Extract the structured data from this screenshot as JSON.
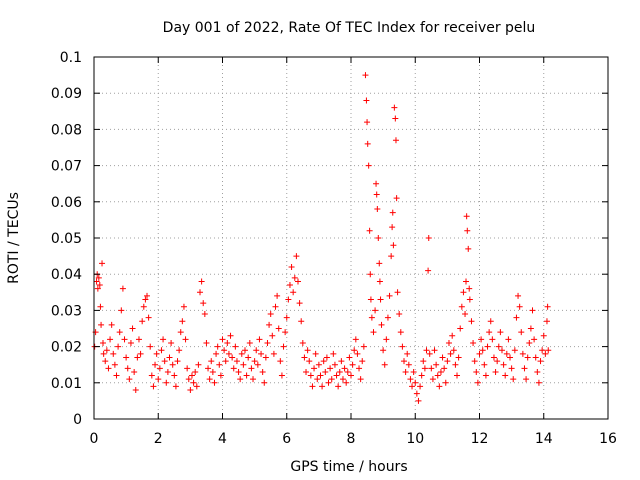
{
  "chart_data": {
    "type": "scatter",
    "title": "Day 001 of 2022, Rate Of TEC Index for receiver pelu",
    "xlabel": "GPS time / hours",
    "ylabel": "ROTI / TECUs",
    "xlim": [
      0,
      16
    ],
    "ylim": [
      0,
      0.1
    ],
    "x_ticks": [
      0,
      2,
      4,
      6,
      8,
      10,
      12,
      14,
      16
    ],
    "x_tick_labels": [
      "0",
      "2",
      "4",
      "6",
      "8",
      "10",
      "12",
      "14",
      "16"
    ],
    "y_ticks": [
      0,
      0.01,
      0.02,
      0.03,
      0.04,
      0.05,
      0.06,
      0.07,
      0.08,
      0.09,
      0.1
    ],
    "y_tick_labels": [
      "0",
      "0.01",
      "0.02",
      "0.03",
      "0.04",
      "0.05",
      "0.06",
      "0.07",
      "0.08",
      "0.09",
      "0.1"
    ],
    "grid": true,
    "marker": "+",
    "series": [
      {
        "name": "ROTI",
        "color": "#ff0000",
        "points": [
          [
            0.02,
            0.02
          ],
          [
            0.05,
            0.024
          ],
          [
            0.08,
            0.038
          ],
          [
            0.1,
            0.04
          ],
          [
            0.12,
            0.036
          ],
          [
            0.15,
            0.039
          ],
          [
            0.18,
            0.037
          ],
          [
            0.2,
            0.031
          ],
          [
            0.22,
            0.026
          ],
          [
            0.25,
            0.043
          ],
          [
            0.28,
            0.021
          ],
          [
            0.3,
            0.018
          ],
          [
            0.35,
            0.016
          ],
          [
            0.4,
            0.019
          ],
          [
            0.45,
            0.014
          ],
          [
            0.5,
            0.022
          ],
          [
            0.55,
            0.026
          ],
          [
            0.6,
            0.018
          ],
          [
            0.65,
            0.015
          ],
          [
            0.7,
            0.012
          ],
          [
            0.75,
            0.02
          ],
          [
            0.8,
            0.024
          ],
          [
            0.85,
            0.03
          ],
          [
            0.9,
            0.036
          ],
          [
            0.95,
            0.022
          ],
          [
            1.0,
            0.017
          ],
          [
            1.05,
            0.014
          ],
          [
            1.1,
            0.011
          ],
          [
            1.15,
            0.021
          ],
          [
            1.2,
            0.025
          ],
          [
            1.25,
            0.013
          ],
          [
            1.3,
            0.008
          ],
          [
            1.35,
            0.017
          ],
          [
            1.4,
            0.022
          ],
          [
            1.45,
            0.018
          ],
          [
            1.5,
            0.027
          ],
          [
            1.55,
            0.031
          ],
          [
            1.6,
            0.033
          ],
          [
            1.65,
            0.034
          ],
          [
            1.7,
            0.028
          ],
          [
            1.75,
            0.02
          ],
          [
            1.8,
            0.012
          ],
          [
            1.85,
            0.009
          ],
          [
            1.9,
            0.015
          ],
          [
            1.95,
            0.018
          ],
          [
            2.0,
            0.011
          ],
          [
            2.05,
            0.014
          ],
          [
            2.1,
            0.019
          ],
          [
            2.15,
            0.022
          ],
          [
            2.2,
            0.016
          ],
          [
            2.25,
            0.01
          ],
          [
            2.3,
            0.013
          ],
          [
            2.35,
            0.017
          ],
          [
            2.4,
            0.021
          ],
          [
            2.45,
            0.015
          ],
          [
            2.5,
            0.012
          ],
          [
            2.55,
            0.009
          ],
          [
            2.6,
            0.016
          ],
          [
            2.65,
            0.019
          ],
          [
            2.7,
            0.024
          ],
          [
            2.75,
            0.027
          ],
          [
            2.8,
            0.031
          ],
          [
            2.85,
            0.022
          ],
          [
            2.9,
            0.014
          ],
          [
            2.95,
            0.011
          ],
          [
            3.0,
            0.008
          ],
          [
            3.05,
            0.012
          ],
          [
            3.1,
            0.01
          ],
          [
            3.15,
            0.013
          ],
          [
            3.2,
            0.009
          ],
          [
            3.25,
            0.015
          ],
          [
            3.3,
            0.035
          ],
          [
            3.35,
            0.038
          ],
          [
            3.4,
            0.032
          ],
          [
            3.45,
            0.029
          ],
          [
            3.5,
            0.021
          ],
          [
            3.55,
            0.014
          ],
          [
            3.6,
            0.011
          ],
          [
            3.65,
            0.016
          ],
          [
            3.7,
            0.013
          ],
          [
            3.75,
            0.01
          ],
          [
            3.8,
            0.018
          ],
          [
            3.85,
            0.02
          ],
          [
            3.9,
            0.015
          ],
          [
            3.95,
            0.012
          ],
          [
            4.0,
            0.022
          ],
          [
            4.05,
            0.019
          ],
          [
            4.1,
            0.016
          ],
          [
            4.15,
            0.021
          ],
          [
            4.2,
            0.018
          ],
          [
            4.25,
            0.023
          ],
          [
            4.3,
            0.017
          ],
          [
            4.35,
            0.014
          ],
          [
            4.4,
            0.02
          ],
          [
            4.45,
            0.016
          ],
          [
            4.5,
            0.013
          ],
          [
            4.55,
            0.011
          ],
          [
            4.6,
            0.018
          ],
          [
            4.65,
            0.015
          ],
          [
            4.7,
            0.019
          ],
          [
            4.75,
            0.012
          ],
          [
            4.8,
            0.017
          ],
          [
            4.85,
            0.021
          ],
          [
            4.9,
            0.014
          ],
          [
            4.95,
            0.011
          ],
          [
            5.0,
            0.016
          ],
          [
            5.05,
            0.019
          ],
          [
            5.1,
            0.015
          ],
          [
            5.15,
            0.022
          ],
          [
            5.2,
            0.018
          ],
          [
            5.25,
            0.013
          ],
          [
            5.3,
            0.01
          ],
          [
            5.35,
            0.017
          ],
          [
            5.4,
            0.021
          ],
          [
            5.45,
            0.026
          ],
          [
            5.5,
            0.029
          ],
          [
            5.55,
            0.023
          ],
          [
            5.6,
            0.018
          ],
          [
            5.65,
            0.031
          ],
          [
            5.7,
            0.034
          ],
          [
            5.75,
            0.025
          ],
          [
            5.8,
            0.016
          ],
          [
            5.85,
            0.012
          ],
          [
            5.9,
            0.02
          ],
          [
            5.95,
            0.024
          ],
          [
            6.0,
            0.028
          ],
          [
            6.05,
            0.033
          ],
          [
            6.1,
            0.037
          ],
          [
            6.15,
            0.042
          ],
          [
            6.2,
            0.035
          ],
          [
            6.25,
            0.039
          ],
          [
            6.3,
            0.045
          ],
          [
            6.35,
            0.038
          ],
          [
            6.4,
            0.032
          ],
          [
            6.45,
            0.027
          ],
          [
            6.5,
            0.021
          ],
          [
            6.55,
            0.017
          ],
          [
            6.6,
            0.013
          ],
          [
            6.65,
            0.019
          ],
          [
            6.7,
            0.016
          ],
          [
            6.75,
            0.012
          ],
          [
            6.8,
            0.009
          ],
          [
            6.85,
            0.014
          ],
          [
            6.9,
            0.018
          ],
          [
            6.95,
            0.011
          ],
          [
            7.0,
            0.015
          ],
          [
            7.05,
            0.012
          ],
          [
            7.1,
            0.009
          ],
          [
            7.15,
            0.016
          ],
          [
            7.2,
            0.013
          ],
          [
            7.25,
            0.017
          ],
          [
            7.3,
            0.01
          ],
          [
            7.35,
            0.014
          ],
          [
            7.4,
            0.011
          ],
          [
            7.45,
            0.018
          ],
          [
            7.5,
            0.015
          ],
          [
            7.55,
            0.012
          ],
          [
            7.6,
            0.009
          ],
          [
            7.65,
            0.013
          ],
          [
            7.7,
            0.016
          ],
          [
            7.75,
            0.011
          ],
          [
            7.8,
            0.014
          ],
          [
            7.85,
            0.01
          ],
          [
            7.9,
            0.013
          ],
          [
            7.95,
            0.017
          ],
          [
            8.0,
            0.012
          ],
          [
            8.05,
            0.015
          ],
          [
            8.1,
            0.019
          ],
          [
            8.15,
            0.022
          ],
          [
            8.2,
            0.018
          ],
          [
            8.25,
            0.014
          ],
          [
            8.3,
            0.011
          ],
          [
            8.35,
            0.016
          ],
          [
            8.4,
            0.02
          ],
          [
            8.45,
            0.095
          ],
          [
            8.48,
            0.088
          ],
          [
            8.5,
            0.082
          ],
          [
            8.52,
            0.076
          ],
          [
            8.55,
            0.07
          ],
          [
            8.58,
            0.052
          ],
          [
            8.6,
            0.04
          ],
          [
            8.62,
            0.033
          ],
          [
            8.65,
            0.028
          ],
          [
            8.7,
            0.024
          ],
          [
            8.75,
            0.03
          ],
          [
            8.78,
            0.065
          ],
          [
            8.8,
            0.062
          ],
          [
            8.82,
            0.058
          ],
          [
            8.85,
            0.05
          ],
          [
            8.88,
            0.043
          ],
          [
            8.9,
            0.038
          ],
          [
            8.92,
            0.033
          ],
          [
            8.95,
            0.026
          ],
          [
            9.0,
            0.019
          ],
          [
            9.05,
            0.015
          ],
          [
            9.1,
            0.022
          ],
          [
            9.15,
            0.028
          ],
          [
            9.2,
            0.034
          ],
          [
            9.25,
            0.045
          ],
          [
            9.28,
            0.053
          ],
          [
            9.3,
            0.057
          ],
          [
            9.32,
            0.048
          ],
          [
            9.35,
            0.086
          ],
          [
            9.38,
            0.083
          ],
          [
            9.4,
            0.077
          ],
          [
            9.42,
            0.061
          ],
          [
            9.45,
            0.035
          ],
          [
            9.5,
            0.029
          ],
          [
            9.55,
            0.024
          ],
          [
            9.6,
            0.02
          ],
          [
            9.65,
            0.016
          ],
          [
            9.7,
            0.013
          ],
          [
            9.75,
            0.018
          ],
          [
            9.8,
            0.015
          ],
          [
            9.85,
            0.011
          ],
          [
            9.9,
            0.009
          ],
          [
            9.95,
            0.013
          ],
          [
            10.0,
            0.01
          ],
          [
            10.05,
            0.007
          ],
          [
            10.1,
            0.005
          ],
          [
            10.15,
            0.009
          ],
          [
            10.2,
            0.012
          ],
          [
            10.25,
            0.016
          ],
          [
            10.3,
            0.014
          ],
          [
            10.35,
            0.019
          ],
          [
            10.4,
            0.041
          ],
          [
            10.42,
            0.05
          ],
          [
            10.45,
            0.018
          ],
          [
            10.5,
            0.014
          ],
          [
            10.55,
            0.011
          ],
          [
            10.6,
            0.019
          ],
          [
            10.65,
            0.015
          ],
          [
            10.7,
            0.012
          ],
          [
            10.75,
            0.009
          ],
          [
            10.8,
            0.013
          ],
          [
            10.85,
            0.017
          ],
          [
            10.9,
            0.014
          ],
          [
            10.95,
            0.01
          ],
          [
            11.0,
            0.016
          ],
          [
            11.05,
            0.021
          ],
          [
            11.1,
            0.018
          ],
          [
            11.15,
            0.023
          ],
          [
            11.2,
            0.019
          ],
          [
            11.25,
            0.015
          ],
          [
            11.3,
            0.012
          ],
          [
            11.35,
            0.017
          ],
          [
            11.4,
            0.025
          ],
          [
            11.45,
            0.031
          ],
          [
            11.5,
            0.035
          ],
          [
            11.55,
            0.029
          ],
          [
            11.58,
            0.038
          ],
          [
            11.6,
            0.056
          ],
          [
            11.62,
            0.052
          ],
          [
            11.65,
            0.047
          ],
          [
            11.68,
            0.036
          ],
          [
            11.7,
            0.033
          ],
          [
            11.75,
            0.027
          ],
          [
            11.8,
            0.021
          ],
          [
            11.85,
            0.016
          ],
          [
            11.9,
            0.013
          ],
          [
            11.95,
            0.01
          ],
          [
            12.0,
            0.018
          ],
          [
            12.05,
            0.022
          ],
          [
            12.1,
            0.019
          ],
          [
            12.15,
            0.015
          ],
          [
            12.2,
            0.012
          ],
          [
            12.25,
            0.02
          ],
          [
            12.3,
            0.024
          ],
          [
            12.35,
            0.027
          ],
          [
            12.4,
            0.022
          ],
          [
            12.45,
            0.017
          ],
          [
            12.5,
            0.013
          ],
          [
            12.55,
            0.016
          ],
          [
            12.6,
            0.02
          ],
          [
            12.65,
            0.024
          ],
          [
            12.7,
            0.019
          ],
          [
            12.75,
            0.015
          ],
          [
            12.8,
            0.012
          ],
          [
            12.85,
            0.018
          ],
          [
            12.9,
            0.022
          ],
          [
            12.95,
            0.017
          ],
          [
            13.0,
            0.014
          ],
          [
            13.05,
            0.011
          ],
          [
            13.1,
            0.019
          ],
          [
            13.15,
            0.028
          ],
          [
            13.2,
            0.034
          ],
          [
            13.25,
            0.031
          ],
          [
            13.3,
            0.024
          ],
          [
            13.35,
            0.018
          ],
          [
            13.4,
            0.014
          ],
          [
            13.45,
            0.011
          ],
          [
            13.5,
            0.017
          ],
          [
            13.55,
            0.021
          ],
          [
            13.6,
            0.025
          ],
          [
            13.65,
            0.03
          ],
          [
            13.7,
            0.022
          ],
          [
            13.75,
            0.017
          ],
          [
            13.8,
            0.013
          ],
          [
            13.85,
            0.01
          ],
          [
            13.9,
            0.016
          ],
          [
            13.95,
            0.019
          ],
          [
            14.0,
            0.023
          ],
          [
            14.05,
            0.018
          ],
          [
            14.1,
            0.027
          ],
          [
            14.12,
            0.031
          ],
          [
            14.14,
            0.019
          ]
        ]
      }
    ]
  }
}
